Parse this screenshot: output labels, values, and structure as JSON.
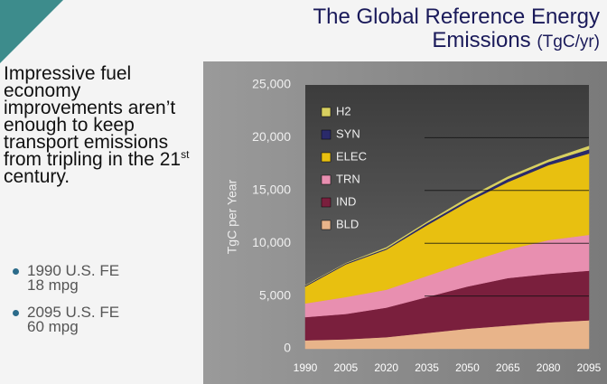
{
  "slide": {
    "title_line1": "The Global Reference Energy",
    "title_line2": "Emissions",
    "title_unit": "(TgC/yr)",
    "body": [
      "Impressive fuel economy improvements aren’t enough to keep transport emissions from tripling in the 21",
      "st",
      " century."
    ],
    "bullets": [
      [
        "1990 U.S. FE",
        "18 mpg"
      ],
      [
        "2095 U.S. FE",
        "60 mpg"
      ]
    ]
  },
  "chart_data": {
    "type": "stacked_area",
    "y_label": "TgC per Year",
    "x": [
      1990,
      2005,
      2020,
      2035,
      2050,
      2065,
      2080,
      2095
    ],
    "xlim": [
      1990,
      2095
    ],
    "xticks": [
      1990,
      2005,
      2020,
      2035,
      2050,
      2065,
      2080,
      2095
    ],
    "ylim": [
      0,
      25000
    ],
    "yticks": [
      0,
      {
        "value": 5000,
        "label": "5,000"
      },
      {
        "value": 10000,
        "label": "10,000"
      },
      {
        "value": 15000,
        "label": "15,000"
      },
      {
        "value": 20000,
        "label": "20,000"
      },
      {
        "value": 25000,
        "label": "25,000"
      }
    ],
    "grid": true,
    "series": [
      {
        "name": "BLD",
        "color": "#e8b48a",
        "values": [
          800,
          900,
          1100,
          1500,
          1900,
          2200,
          2500,
          2700
        ]
      },
      {
        "name": "IND",
        "color": "#7a1f3d",
        "values": [
          2200,
          2400,
          2800,
          3400,
          4000,
          4500,
          4600,
          4700
        ]
      },
      {
        "name": "TRN",
        "color": "#e88fb0",
        "values": [
          1300,
          1600,
          1700,
          2000,
          2300,
          2700,
          3200,
          3400
        ]
      },
      {
        "name": "ELEC",
        "color": "#e8c010",
        "values": [
          1600,
          3100,
          3800,
          4800,
          5700,
          6400,
          7100,
          7700
        ]
      },
      {
        "name": "SYN",
        "color": "#2a2a6a",
        "values": [
          100,
          100,
          100,
          200,
          200,
          300,
          300,
          400
        ]
      },
      {
        "name": "H2",
        "color": "#d8d060",
        "values": [
          0,
          0,
          100,
          100,
          200,
          200,
          200,
          300
        ]
      }
    ]
  }
}
